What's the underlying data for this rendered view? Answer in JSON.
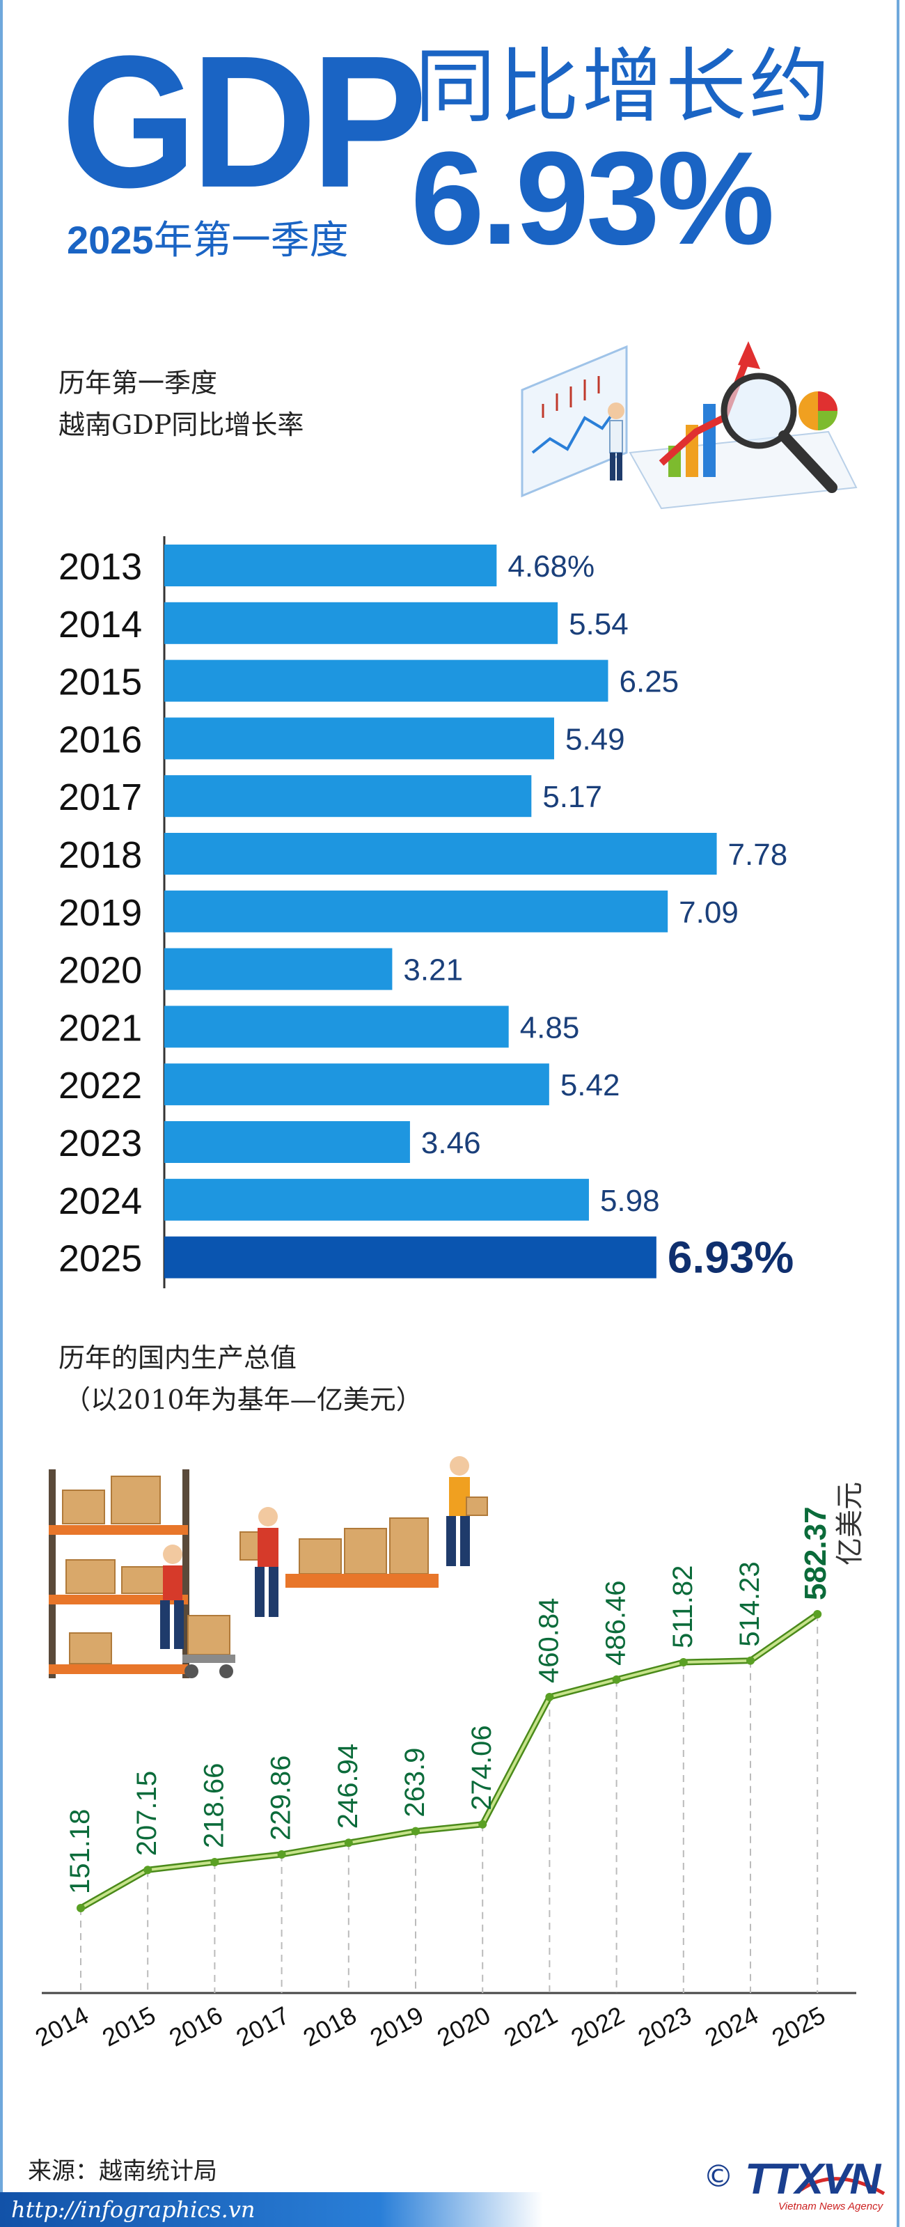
{
  "header": {
    "gdp": "GDP",
    "period_year": "2025",
    "period_rest": "年第一季度",
    "headline": "同比增长约",
    "headline_value": "6.93%"
  },
  "bar_section": {
    "title_line1": "历年第一季度",
    "title_line2": "越南GDP同比增长率"
  },
  "line_section": {
    "title_line1": "历年的国内生产总值",
    "title_line2": "（以2010年为基年—亿美元）",
    "unit_label": "亿美元"
  },
  "footer": {
    "source": "来源：越南统计局",
    "url": "http://infographics.vn",
    "logo_copyright": "©",
    "logo_name": "TTXVN",
    "logo_sub": "Vietnam News Agency"
  },
  "colors": {
    "brand_blue": "#1a64c4",
    "bar": "#1e96e0",
    "bar_highlight": "#0a55b0",
    "line": "#7dbb2e",
    "line_label": "#0b6b3a"
  },
  "chart_data": [
    {
      "type": "bar",
      "orientation": "horizontal",
      "title": "历年第一季度越南GDP同比增长率",
      "categories": [
        "2013",
        "2014",
        "2015",
        "2016",
        "2017",
        "2018",
        "2019",
        "2020",
        "2021",
        "2022",
        "2023",
        "2024",
        "2025"
      ],
      "values": [
        4.68,
        5.54,
        6.25,
        5.49,
        5.17,
        7.78,
        7.09,
        3.21,
        4.85,
        5.42,
        3.46,
        5.98,
        6.93
      ],
      "labels": [
        "4.68%",
        "5.54",
        "6.25",
        "5.49",
        "5.17",
        "7.78",
        "7.09",
        "3.21",
        "4.85",
        "5.42",
        "3.46",
        "5.98",
        "6.93%"
      ],
      "highlight": "2025",
      "xlim": [
        0,
        10.5
      ]
    },
    {
      "type": "line",
      "title": "历年的国内生产总值（以2010年为基年—亿美元）",
      "x": [
        "2014",
        "2015",
        "2016",
        "2017",
        "2018",
        "2019",
        "2020",
        "2021",
        "2022",
        "2023",
        "2024",
        "2025"
      ],
      "values": [
        151.18,
        207.15,
        218.66,
        229.86,
        246.94,
        263.9,
        274.06,
        460.84,
        486.46,
        511.82,
        514.23,
        582.37
      ],
      "labels": [
        "151.18",
        "207.15",
        "218.66",
        "229.86",
        "246.94",
        "263.9",
        "274.06",
        "460.84",
        "486.46",
        "511.82",
        "514.23",
        "582.37"
      ],
      "highlight": "2025"
    }
  ]
}
